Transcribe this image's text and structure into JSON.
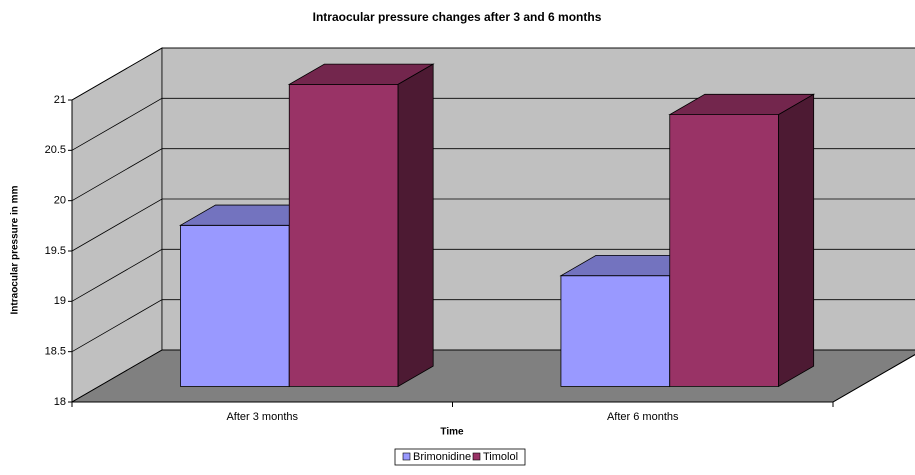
{
  "chart_data": {
    "type": "bar3d",
    "title": "Intraocular pressure  changes after 3 and 6 months",
    "x_label": "Time",
    "y_label": "Intraocular pressure in mm",
    "categories": [
      "After 3 months",
      "After 6 months"
    ],
    "series": [
      {
        "name": "Brimonidine",
        "color": "#9999ff",
        "values": [
          19.6,
          19.1
        ]
      },
      {
        "name": "Timolol",
        "color": "#993366",
        "values": [
          21.0,
          20.7
        ]
      }
    ],
    "ylim": [
      18,
      21
    ],
    "yticks": [
      18,
      18.5,
      19,
      19.5,
      20,
      20.5,
      21
    ],
    "grid": true,
    "legend": "bottom"
  }
}
